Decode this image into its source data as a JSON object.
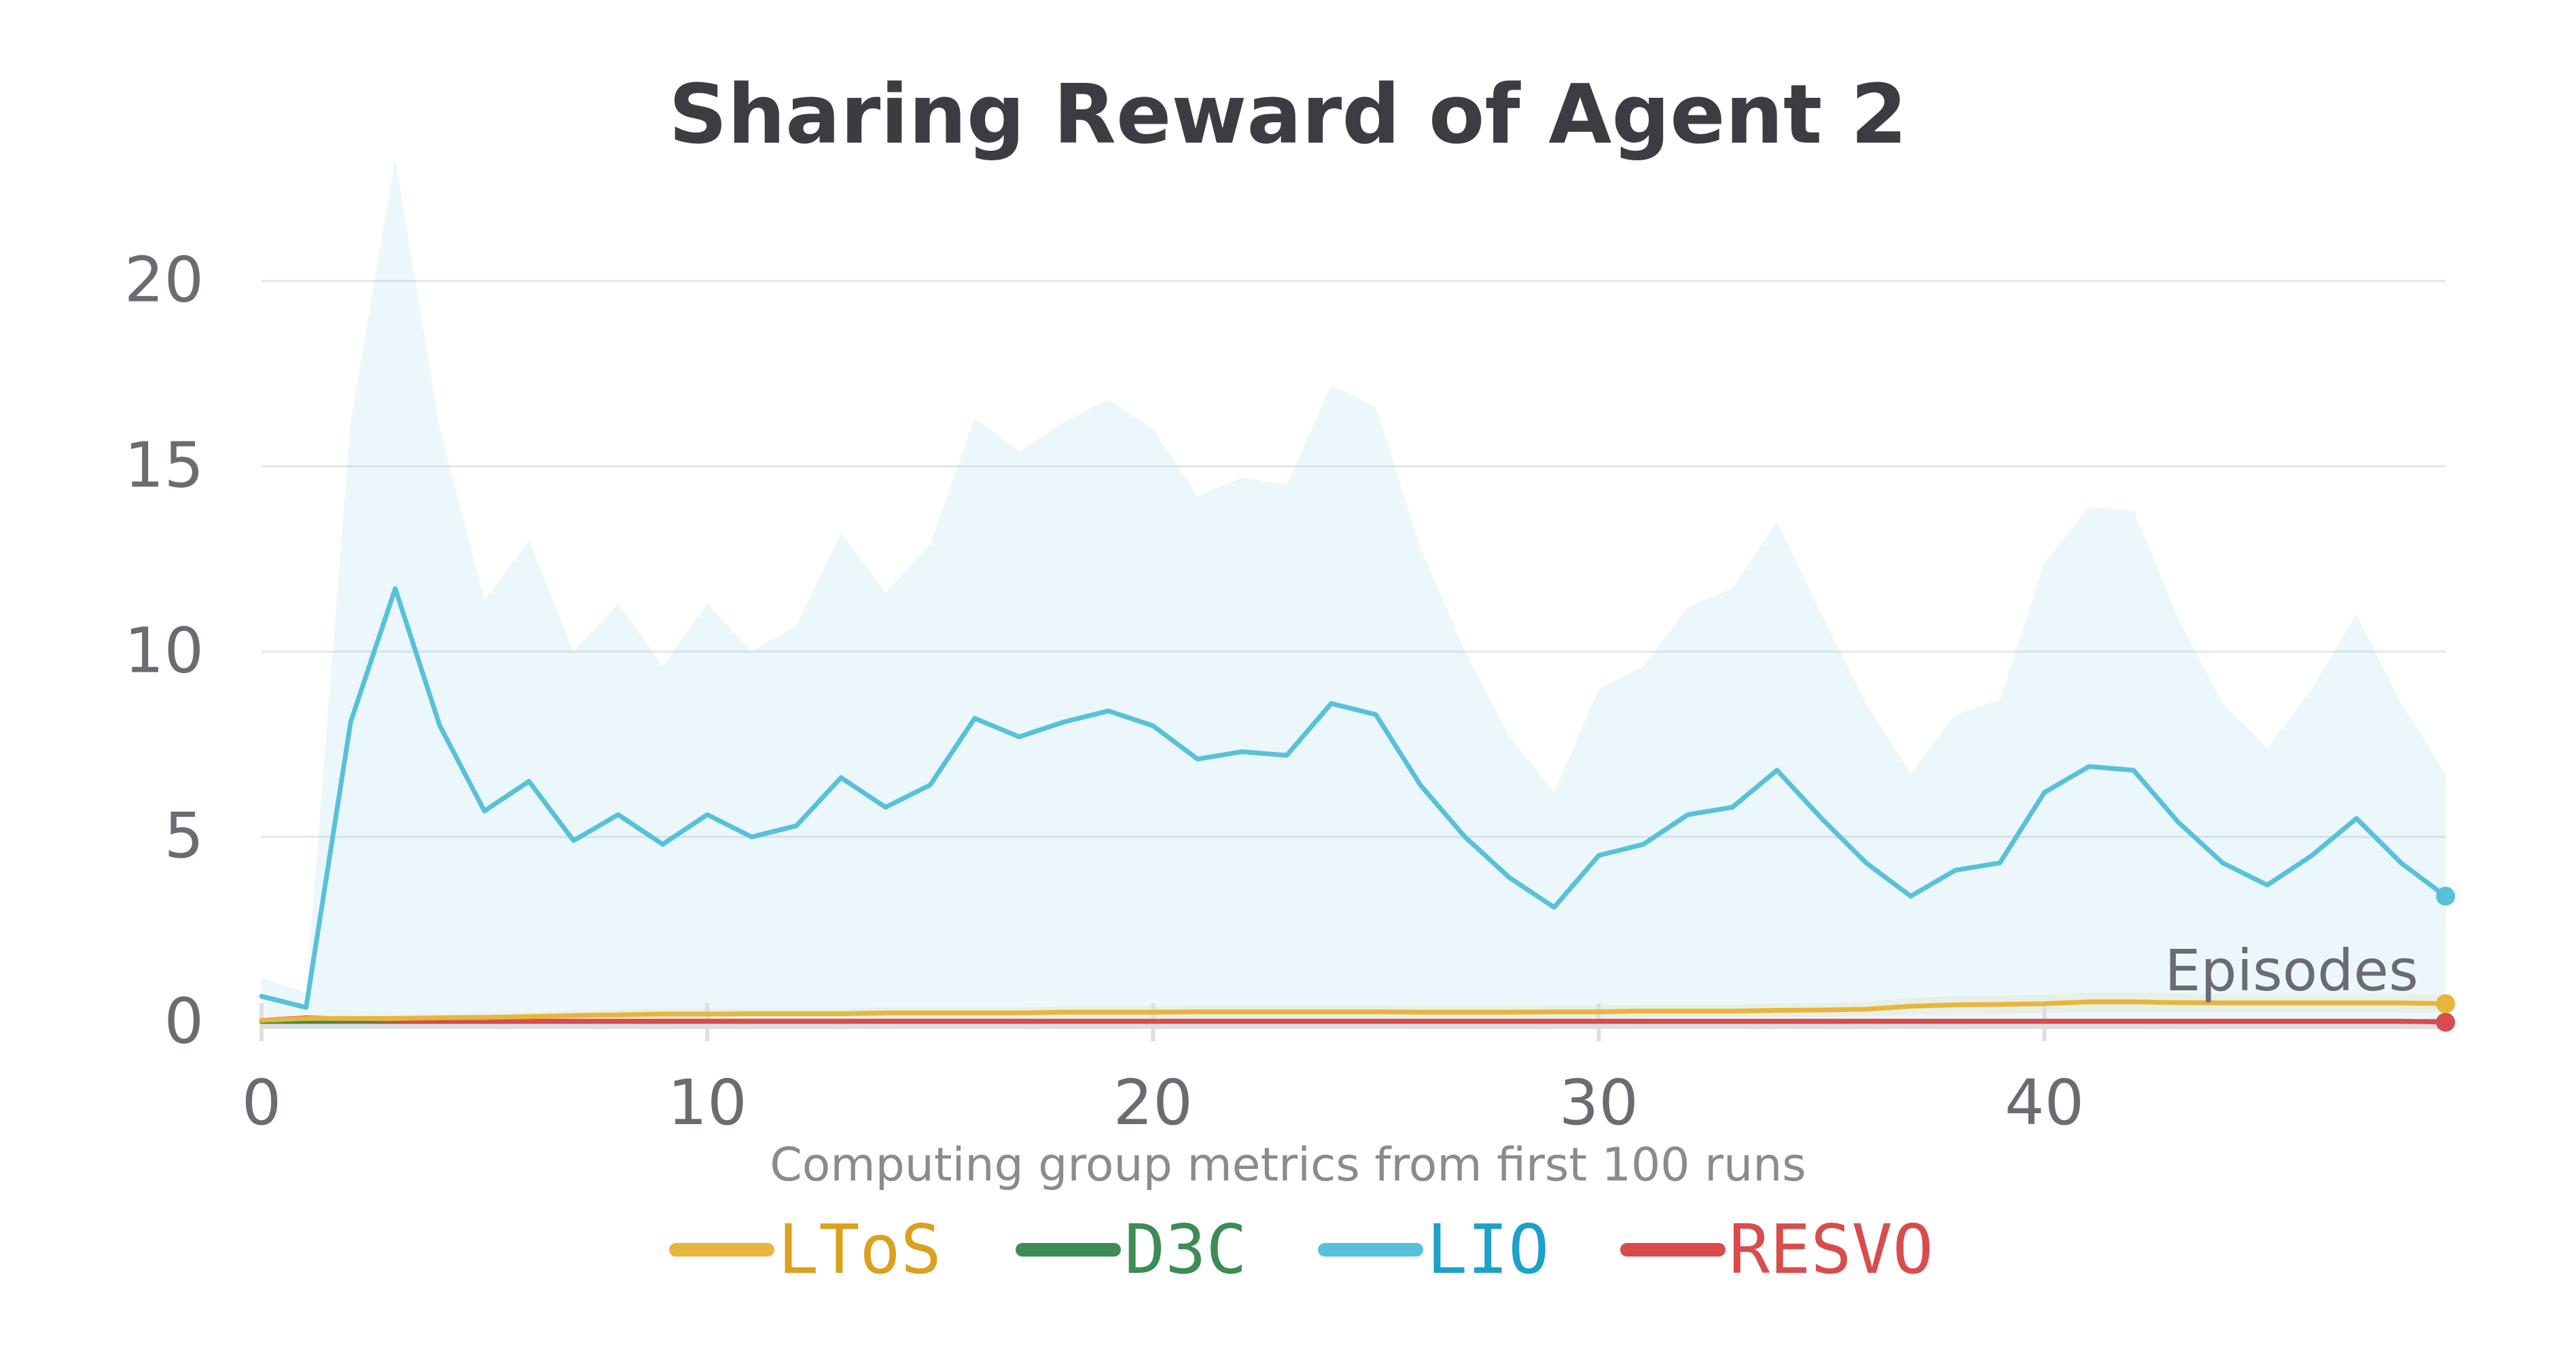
{
  "chart_data": {
    "type": "line",
    "title": "Sharing Reward of Agent 2",
    "xlabel": "Episodes",
    "ylabel": "",
    "note": "Computing group metrics from first 100 runs",
    "xlim": [
      0,
      49
    ],
    "ylim": [
      0,
      23
    ],
    "x_ticks": [
      0,
      10,
      20,
      30,
      40
    ],
    "y_ticks": [
      0,
      5,
      10,
      15,
      20
    ],
    "grid": true,
    "legend_position": "bottom",
    "x": [
      0,
      1,
      2,
      3,
      4,
      5,
      6,
      7,
      8,
      9,
      10,
      11,
      12,
      13,
      14,
      15,
      16,
      17,
      18,
      19,
      20,
      21,
      22,
      23,
      24,
      25,
      26,
      27,
      28,
      29,
      30,
      31,
      32,
      33,
      34,
      35,
      36,
      37,
      38,
      39,
      40,
      41,
      42,
      43,
      44,
      45,
      46,
      47,
      48,
      49
    ],
    "series": [
      {
        "name": "LToS",
        "color": "#e8b53c",
        "text_color": "#d9a11c",
        "values": [
          0.05,
          0.1,
          0.1,
          0.1,
          0.12,
          0.13,
          0.15,
          0.18,
          0.2,
          0.22,
          0.22,
          0.23,
          0.23,
          0.23,
          0.25,
          0.25,
          0.25,
          0.25,
          0.27,
          0.27,
          0.27,
          0.28,
          0.28,
          0.28,
          0.28,
          0.28,
          0.27,
          0.27,
          0.27,
          0.28,
          0.28,
          0.3,
          0.3,
          0.3,
          0.32,
          0.33,
          0.35,
          0.43,
          0.47,
          0.48,
          0.5,
          0.55,
          0.55,
          0.53,
          0.52,
          0.52,
          0.52,
          0.52,
          0.52,
          0.5
        ],
        "band_upper": [
          0.1,
          0.18,
          0.2,
          0.2,
          0.22,
          0.24,
          0.26,
          0.3,
          0.33,
          0.36,
          0.36,
          0.37,
          0.37,
          0.37,
          0.4,
          0.4,
          0.4,
          0.4,
          0.43,
          0.43,
          0.43,
          0.45,
          0.45,
          0.45,
          0.45,
          0.45,
          0.43,
          0.43,
          0.43,
          0.45,
          0.45,
          0.48,
          0.48,
          0.48,
          0.5,
          0.52,
          0.55,
          0.65,
          0.7,
          0.72,
          0.74,
          0.8,
          0.8,
          0.78,
          0.76,
          0.76,
          0.76,
          0.76,
          0.76,
          0.74
        ],
        "band_lower": [
          0,
          0.02,
          0.02,
          0.02,
          0.03,
          0.03,
          0.04,
          0.06,
          0.07,
          0.08,
          0.08,
          0.09,
          0.09,
          0.09,
          0.1,
          0.1,
          0.1,
          0.1,
          0.11,
          0.11,
          0.11,
          0.12,
          0.12,
          0.12,
          0.12,
          0.12,
          0.11,
          0.11,
          0.11,
          0.12,
          0.12,
          0.13,
          0.13,
          0.13,
          0.14,
          0.15,
          0.16,
          0.2,
          0.22,
          0.23,
          0.25,
          0.28,
          0.28,
          0.27,
          0.26,
          0.26,
          0.26,
          0.26,
          0.26,
          0.25
        ]
      },
      {
        "name": "D3C",
        "color": "#3d8c55",
        "text_color": "#3d8c55",
        "values": [
          0.02,
          0.02,
          0.02,
          0.02,
          0.02,
          0.02,
          0.02,
          0.02,
          0.02,
          0.02,
          0.02,
          0.02,
          0.02,
          0.02,
          0.02,
          0.02,
          0.02,
          0.02,
          0.02,
          0.02,
          0.02,
          0.02,
          0.02,
          0.02,
          0.02,
          0.02,
          0.02,
          0.02,
          0.02,
          0.02,
          0.02,
          0.02,
          0.02,
          0.02,
          0.02,
          0.02,
          0.02,
          0.02,
          0.02,
          0.02,
          0.02,
          0.02,
          0.02,
          0.02,
          0.02,
          0.02,
          0.02,
          0.02,
          0.02,
          0.02
        ]
      },
      {
        "name": "LIO",
        "color": "#58c1d9",
        "text_color": "#1ea1c8",
        "values": [
          0.7,
          0.4,
          8.1,
          11.7,
          8.0,
          5.7,
          6.5,
          4.9,
          5.6,
          4.8,
          5.6,
          5.0,
          5.3,
          6.6,
          5.8,
          6.4,
          8.2,
          7.7,
          8.1,
          8.4,
          8.0,
          7.1,
          7.3,
          7.2,
          8.6,
          8.3,
          6.4,
          5.0,
          3.9,
          3.1,
          4.5,
          4.8,
          5.6,
          5.8,
          6.8,
          5.5,
          4.3,
          3.4,
          4.1,
          4.3,
          6.2,
          6.9,
          6.8,
          5.4,
          4.3,
          3.7,
          4.5,
          5.5,
          4.3,
          3.4
        ],
        "band_upper": [
          1.2,
          0.8,
          16.2,
          23.3,
          16.0,
          11.4,
          13.0,
          10.0,
          11.3,
          9.6,
          11.3,
          10.0,
          10.7,
          13.2,
          11.6,
          12.9,
          16.3,
          15.4,
          16.2,
          16.8,
          16.0,
          14.2,
          14.7,
          14.5,
          17.2,
          16.6,
          12.8,
          10.0,
          7.7,
          6.2,
          9.0,
          9.6,
          11.2,
          11.7,
          13.5,
          11.0,
          8.6,
          6.7,
          8.3,
          8.7,
          12.4,
          13.9,
          13.8,
          10.9,
          8.6,
          7.4,
          9.0,
          11.0,
          8.6,
          6.7
        ],
        "band_lower": [
          0.2,
          0.0,
          0.0,
          0.0,
          0.0,
          0.0,
          0.0,
          0.0,
          0.0,
          0.0,
          0.0,
          0.0,
          0.0,
          0.0,
          0.0,
          0.0,
          0.0,
          0.0,
          0.0,
          0.0,
          0.0,
          0.0,
          0.0,
          0.0,
          0.0,
          0.0,
          0.0,
          0.0,
          0.0,
          0.0,
          0.0,
          0.0,
          0.0,
          0.0,
          0.0,
          0.0,
          0.0,
          0.0,
          0.0,
          0.0,
          0.0,
          0.0,
          0.0,
          0.0,
          0.0,
          0.0,
          0.0,
          0.0,
          0.0,
          0.0
        ]
      },
      {
        "name": "RESVO",
        "color": "#d94c4c",
        "text_color": "#d94c4c",
        "values": [
          0.05,
          0.12,
          0.08,
          0.05,
          0.04,
          0.04,
          0.03,
          0.03,
          0.03,
          0.03,
          0.03,
          0.03,
          0.03,
          0.03,
          0.03,
          0.03,
          0.03,
          0.03,
          0.03,
          0.03,
          0.03,
          0.03,
          0.03,
          0.03,
          0.03,
          0.03,
          0.03,
          0.03,
          0.03,
          0.03,
          0.03,
          0.03,
          0.03,
          0.03,
          0.03,
          0.03,
          0.03,
          0.03,
          0.03,
          0.03,
          0.03,
          0.03,
          0.03,
          0.03,
          0.03,
          0.03,
          0.03,
          0.03,
          0.03,
          0.0
        ]
      }
    ]
  }
}
